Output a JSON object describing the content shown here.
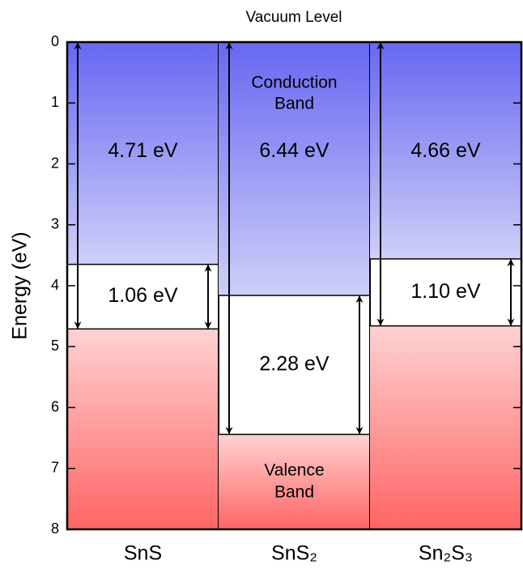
{
  "chart_data": {
    "type": "band_diagram",
    "title": "Vacuum Level",
    "y_label": "Energy (eV)",
    "ylim": [
      0,
      8
    ],
    "yticks": [
      0,
      1,
      2,
      3,
      4,
      5,
      6,
      7,
      8
    ],
    "y_inverted": true,
    "categories": [
      "SnS",
      "SnS₂",
      "Sn₂S₃"
    ],
    "series": [
      {
        "name": "conduction_band_minimum",
        "color": "url(#gBlue)",
        "values": [
          3.65,
          4.16,
          3.56
        ]
      },
      {
        "name": "valence_band_maximum",
        "color": "url(#gRed)",
        "values": [
          4.71,
          6.44,
          4.66
        ],
        "value_labels": [
          "4.71 eV",
          "6.44 eV",
          "4.66 eV"
        ]
      },
      {
        "name": "band_gap",
        "values": [
          1.06,
          2.28,
          1.1
        ],
        "value_labels": [
          "1.06 eV",
          "2.28 eV",
          "1.10 eV"
        ]
      }
    ],
    "conduction_band_label": [
      "Conduction",
      "Band"
    ],
    "valence_band_label": [
      "Valence",
      "Band"
    ]
  }
}
